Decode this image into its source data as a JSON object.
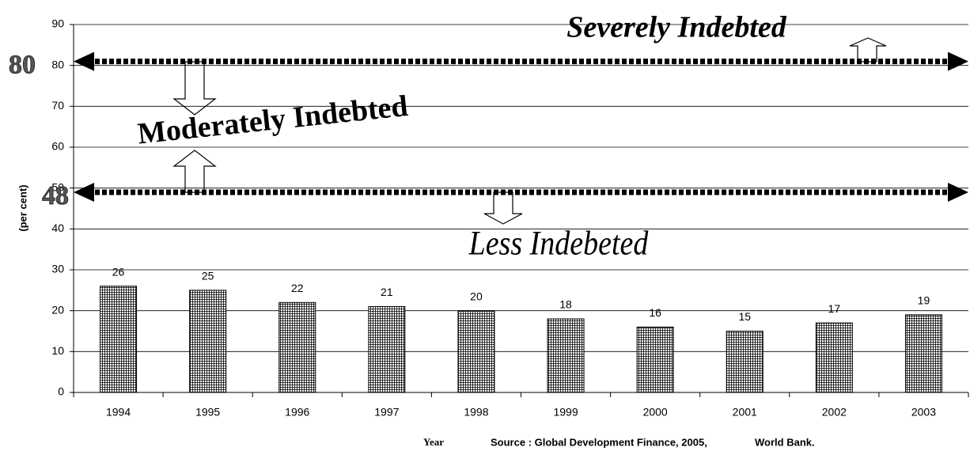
{
  "chart_data": {
    "type": "bar",
    "y_label": "(per cent)",
    "x_label": "Year",
    "source": "Source : Global Development Finance, 2005,",
    "source_org": "World Bank.",
    "categories": [
      "1994",
      "1995",
      "1996",
      "1997",
      "1998",
      "1999",
      "2000",
      "2001",
      "2002",
      "2003"
    ],
    "values": [
      26,
      25,
      22,
      21,
      20,
      18,
      16,
      15,
      17,
      19
    ],
    "color": "#000000",
    "ylim": [
      0,
      90
    ],
    "yticks": [
      0,
      10,
      20,
      30,
      40,
      50,
      60,
      70,
      80,
      90
    ],
    "grid": true,
    "thresholds": [
      80,
      48
    ],
    "annotations": {
      "severe": "Severely Indebted",
      "moderate": "Moderately Indebted",
      "less": "Less Indebeted"
    }
  }
}
